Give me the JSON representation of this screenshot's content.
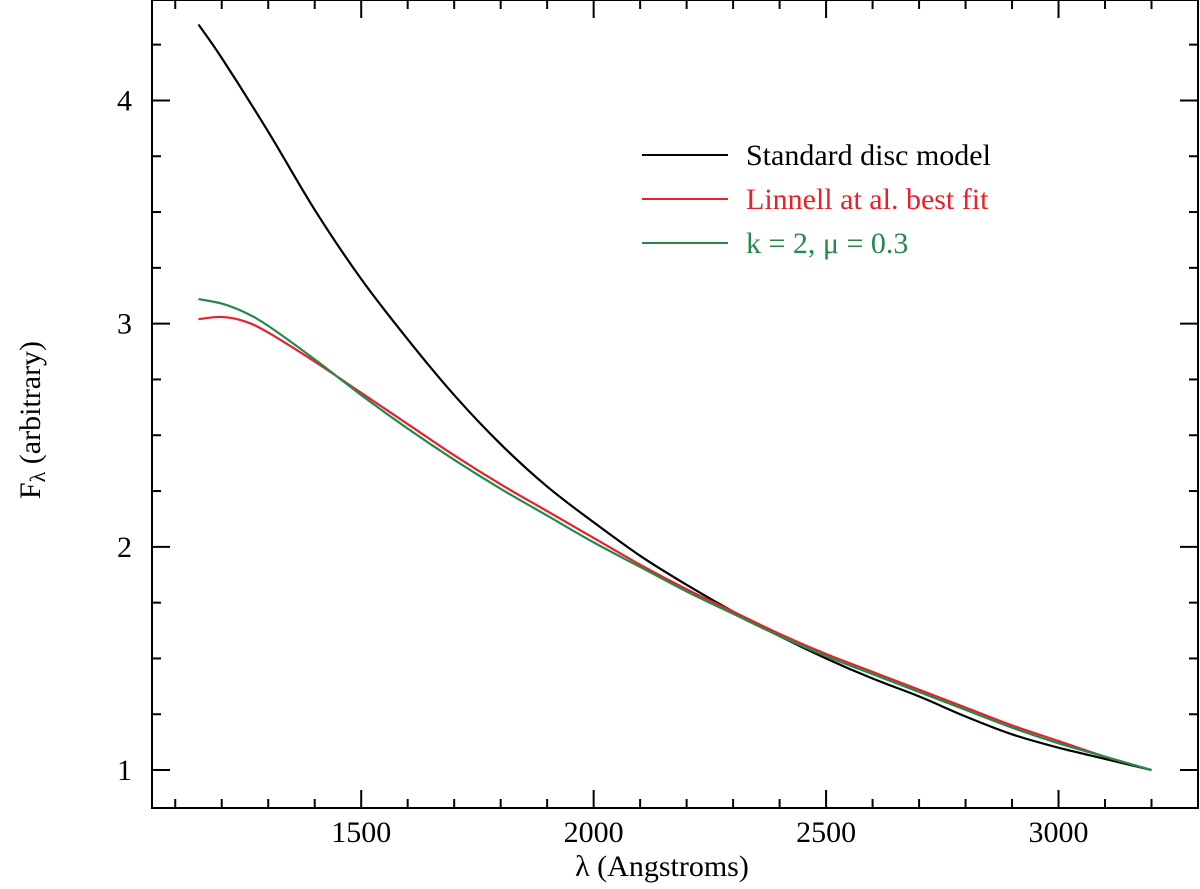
{
  "chart_data": {
    "type": "line",
    "title": "",
    "xlabel": "λ (Angstroms)",
    "ylabel_main": "F",
    "ylabel_sub": "λ",
    "ylabel_rest": " (arbitrary)",
    "xlim": [
      1050,
      3300
    ],
    "ylim": [
      0.83,
      4.45
    ],
    "x_major_ticks": [
      1500,
      2000,
      2500,
      3000
    ],
    "x_tick_labels": [
      "1500",
      "2000",
      "2500",
      "3000"
    ],
    "x_minor_step": 100,
    "y_major_ticks": [
      1,
      2,
      3,
      4
    ],
    "y_tick_labels": [
      "1",
      "2",
      "3",
      "4"
    ],
    "y_minor_step": 0.25,
    "legend_position": "top-right",
    "series": [
      {
        "name": "Standard disc model",
        "color": "#000000",
        "x": [
          1150,
          1200,
          1300,
          1400,
          1500,
          1600,
          1700,
          1800,
          1900,
          2000,
          2100,
          2200,
          2300,
          2400,
          2500,
          2600,
          2700,
          2800,
          2900,
          3000,
          3100,
          3200
        ],
        "y": [
          4.34,
          4.19,
          3.86,
          3.51,
          3.2,
          2.93,
          2.68,
          2.46,
          2.27,
          2.11,
          1.96,
          1.83,
          1.71,
          1.6,
          1.5,
          1.41,
          1.33,
          1.24,
          1.16,
          1.1,
          1.05,
          1.0
        ]
      },
      {
        "name": "Linnell at al. best fit",
        "color": "#e8202a",
        "x": [
          1150,
          1200,
          1250,
          1300,
          1400,
          1500,
          1600,
          1700,
          1800,
          1900,
          2000,
          2100,
          2200,
          2300,
          2400,
          2500,
          2600,
          2700,
          2800,
          2900,
          3000,
          3100,
          3200
        ],
        "y": [
          3.02,
          3.03,
          3.01,
          2.96,
          2.83,
          2.69,
          2.55,
          2.41,
          2.28,
          2.16,
          2.04,
          1.92,
          1.81,
          1.71,
          1.61,
          1.52,
          1.44,
          1.36,
          1.28,
          1.2,
          1.13,
          1.06,
          1.0
        ]
      },
      {
        "name": "k = 2, μ = 0.3",
        "color": "#24894c",
        "x": [
          1150,
          1200,
          1250,
          1300,
          1400,
          1500,
          1600,
          1700,
          1800,
          1900,
          2000,
          2100,
          2200,
          2300,
          2400,
          2500,
          2600,
          2700,
          2800,
          2900,
          3000,
          3100,
          3200
        ],
        "y": [
          3.11,
          3.09,
          3.05,
          2.99,
          2.84,
          2.68,
          2.53,
          2.39,
          2.26,
          2.14,
          2.02,
          1.91,
          1.8,
          1.7,
          1.6,
          1.51,
          1.43,
          1.35,
          1.27,
          1.19,
          1.12,
          1.06,
          1.0
        ]
      }
    ]
  }
}
